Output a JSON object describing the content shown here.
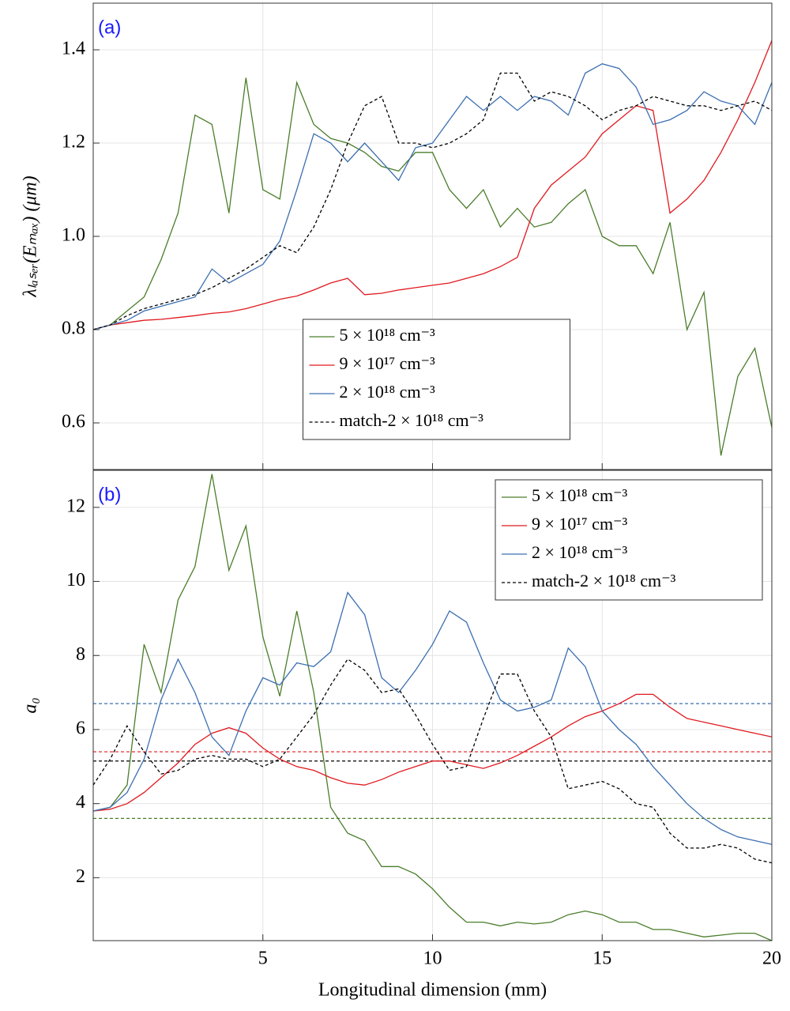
{
  "chart_data": [
    {
      "type": "line",
      "panel_label": "(a)",
      "ylabel": "λₗₐₛₑᵣ(Eₘₐₓ) (μm)",
      "x": [
        0,
        0.5,
        1,
        1.5,
        2,
        2.5,
        3,
        3.5,
        4,
        4.5,
        5,
        5.5,
        6,
        6.5,
        7,
        7.5,
        8,
        8.5,
        9,
        9.5,
        10,
        10.5,
        11,
        11.5,
        12,
        12.5,
        13,
        13.5,
        14,
        14.5,
        15,
        15.5,
        16,
        16.5,
        17,
        17.5,
        18,
        18.5,
        19,
        19.5,
        20
      ],
      "xlim": [
        0,
        20
      ],
      "xticks": [
        5,
        10,
        15,
        20
      ],
      "ylim": [
        0.5,
        1.5
      ],
      "yticks": [
        0.6,
        0.8,
        {
          "value": 1,
          "label": "1.0"
        },
        1.2,
        1.4
      ],
      "grid": true,
      "legend": "lower center",
      "series": [
        {
          "name": "5 × 10¹⁸  cm⁻³",
          "color": "#4a7d2a",
          "dash": false,
          "values": [
            0.8,
            0.81,
            0.84,
            0.87,
            0.95,
            1.05,
            1.26,
            1.24,
            1.05,
            1.34,
            1.1,
            1.08,
            1.33,
            1.24,
            1.21,
            1.2,
            1.18,
            1.15,
            1.14,
            1.18,
            1.18,
            1.1,
            1.06,
            1.1,
            1.02,
            1.06,
            1.02,
            1.03,
            1.07,
            1.1,
            1.0,
            0.98,
            0.98,
            0.92,
            1.03,
            0.8,
            0.88,
            0.53,
            0.7,
            0.76,
            0.59
          ]
        },
        {
          "name": "9 × 10¹⁷  cm⁻³",
          "color": "#e0191f",
          "dash": false,
          "values": [
            0.8,
            0.81,
            0.815,
            0.82,
            0.822,
            0.826,
            0.83,
            0.835,
            0.838,
            0.845,
            0.855,
            0.865,
            0.872,
            0.885,
            0.9,
            0.91,
            0.875,
            0.878,
            0.885,
            0.89,
            0.895,
            0.9,
            0.91,
            0.92,
            0.935,
            0.955,
            1.06,
            1.11,
            1.14,
            1.17,
            1.22,
            1.25,
            1.28,
            1.27,
            1.05,
            1.08,
            1.12,
            1.18,
            1.25,
            1.33,
            1.42
          ]
        },
        {
          "name": "2 × 10¹⁸  cm⁻³",
          "color": "#3c6fb0",
          "dash": false,
          "values": [
            0.8,
            0.81,
            0.82,
            0.84,
            0.85,
            0.86,
            0.87,
            0.93,
            0.9,
            0.92,
            0.94,
            0.99,
            1.1,
            1.22,
            1.2,
            1.16,
            1.2,
            1.16,
            1.12,
            1.19,
            1.2,
            1.25,
            1.3,
            1.27,
            1.3,
            1.27,
            1.3,
            1.29,
            1.26,
            1.35,
            1.37,
            1.36,
            1.32,
            1.24,
            1.25,
            1.27,
            1.31,
            1.29,
            1.28,
            1.24,
            1.33
          ]
        },
        {
          "name": "match-2 × 10¹⁸  cm⁻³",
          "color": "#000000",
          "dash": true,
          "values": [
            0.8,
            0.81,
            0.83,
            0.845,
            0.855,
            0.865,
            0.875,
            0.89,
            0.91,
            0.93,
            0.955,
            0.98,
            0.965,
            1.02,
            1.1,
            1.2,
            1.28,
            1.3,
            1.2,
            1.2,
            1.19,
            1.2,
            1.22,
            1.25,
            1.35,
            1.35,
            1.29,
            1.31,
            1.3,
            1.28,
            1.25,
            1.27,
            1.28,
            1.3,
            1.29,
            1.28,
            1.28,
            1.27,
            1.28,
            1.29,
            1.27
          ]
        }
      ]
    },
    {
      "type": "line",
      "panel_label": "(b)",
      "ylabel": "a₀",
      "xlabel": "Longitudinal dimension (mm)",
      "x": [
        0,
        0.5,
        1,
        1.5,
        2,
        2.5,
        3,
        3.5,
        4,
        4.5,
        5,
        5.5,
        6,
        6.5,
        7,
        7.5,
        8,
        8.5,
        9,
        9.5,
        10,
        10.5,
        11,
        11.5,
        12,
        12.5,
        13,
        13.5,
        14,
        14.5,
        15,
        15.5,
        16,
        16.5,
        17,
        17.5,
        18,
        18.5,
        19,
        19.5,
        20
      ],
      "xlim": [
        0,
        20
      ],
      "xticks": [
        5,
        10,
        15,
        20
      ],
      "ylim": [
        0.3,
        13
      ],
      "yticks": [
        2,
        4,
        6,
        8,
        10,
        12
      ],
      "grid": true,
      "legend": "upper right",
      "series": [
        {
          "name": "5 × 10¹⁸  cm⁻³",
          "color": "#4a7d2a",
          "dash": false,
          "values": [
            3.8,
            3.9,
            4.5,
            8.3,
            7.0,
            9.5,
            10.4,
            12.9,
            10.3,
            11.5,
            8.5,
            6.9,
            9.2,
            7.0,
            3.9,
            3.2,
            3.0,
            2.3,
            2.3,
            2.1,
            1.7,
            1.2,
            0.8,
            0.8,
            0.7,
            0.8,
            0.75,
            0.8,
            1.0,
            1.1,
            1.0,
            0.8,
            0.8,
            0.6,
            0.6,
            0.5,
            0.4,
            0.45,
            0.5,
            0.5,
            0.3
          ]
        },
        {
          "name": "9 × 10¹⁷  cm⁻³",
          "color": "#e0191f",
          "dash": false,
          "values": [
            3.8,
            3.85,
            4.0,
            4.3,
            4.7,
            5.1,
            5.6,
            5.9,
            6.05,
            5.9,
            5.5,
            5.2,
            5.0,
            4.9,
            4.7,
            4.55,
            4.5,
            4.65,
            4.85,
            5.0,
            5.15,
            5.15,
            5.05,
            4.95,
            5.1,
            5.3,
            5.55,
            5.8,
            6.1,
            6.35,
            6.5,
            6.7,
            6.95,
            6.95,
            6.6,
            6.3,
            6.2,
            6.1,
            6.0,
            5.9,
            5.8
          ]
        },
        {
          "name": "2 × 10¹⁸  cm⁻³",
          "color": "#3c6fb0",
          "dash": false,
          "values": [
            3.8,
            3.9,
            4.3,
            5.2,
            6.8,
            7.9,
            7.0,
            5.8,
            5.3,
            6.5,
            7.4,
            7.2,
            7.8,
            7.7,
            8.1,
            9.7,
            9.1,
            7.4,
            7.0,
            7.6,
            8.3,
            9.2,
            8.9,
            7.8,
            6.8,
            6.5,
            6.6,
            6.8,
            8.2,
            7.7,
            6.5,
            6.0,
            5.6,
            5.0,
            4.5,
            4.0,
            3.6,
            3.3,
            3.1,
            3.0,
            2.9
          ]
        },
        {
          "name": "match-2 × 10¹⁸  cm⁻³",
          "color": "#000000",
          "dash": true,
          "values": [
            4.5,
            5.2,
            6.1,
            5.4,
            4.8,
            4.9,
            5.2,
            5.3,
            5.2,
            5.2,
            5.0,
            5.2,
            5.8,
            6.4,
            7.2,
            7.9,
            7.6,
            7.0,
            7.1,
            6.4,
            5.6,
            4.9,
            5.0,
            6.3,
            7.5,
            7.5,
            6.5,
            5.8,
            4.4,
            4.5,
            4.6,
            4.4,
            4.0,
            3.9,
            3.2,
            2.8,
            2.8,
            2.9,
            2.8,
            2.5,
            2.4
          ]
        }
      ],
      "reference_lines": [
        {
          "color": "#3c6fb0",
          "value": 6.7
        },
        {
          "color": "#e0191f",
          "value": 5.4
        },
        {
          "color": "#000000",
          "value": 5.15
        },
        {
          "color": "#4a7d2a",
          "value": 3.6
        }
      ]
    }
  ]
}
